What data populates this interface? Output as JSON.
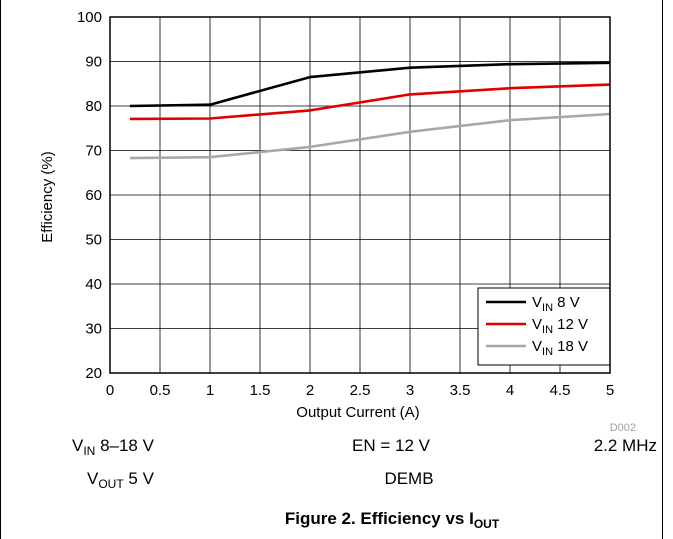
{
  "chart_data": {
    "type": "line",
    "xlabel": "Output Current (A)",
    "ylabel": "Efficiency (%)",
    "xlim": [
      0,
      5
    ],
    "ylim": [
      20,
      100
    ],
    "x_ticks": [
      "0",
      "0.5",
      "1",
      "1.5",
      "2",
      "2.5",
      "3",
      "3.5",
      "4",
      "4.5",
      "5"
    ],
    "y_ticks": [
      "20",
      "30",
      "40",
      "50",
      "60",
      "70",
      "80",
      "90",
      "100"
    ],
    "grid": true,
    "legend_placement": "bottom-right",
    "series": [
      {
        "name_main": "V",
        "name_sub": "IN",
        "name_rest": " 8 V",
        "color": "#000000",
        "x": [
          0.2,
          1.0,
          2.0,
          3.0,
          4.0,
          5.0
        ],
        "y": [
          80.0,
          80.3,
          86.5,
          88.6,
          89.4,
          89.7
        ]
      },
      {
        "name_main": "V",
        "name_sub": "IN",
        "name_rest": " 12 V",
        "color": "#e00000",
        "x": [
          0.2,
          1.0,
          2.0,
          3.0,
          4.0,
          5.0
        ],
        "y": [
          77.1,
          77.2,
          79.0,
          82.6,
          84.0,
          84.8
        ]
      },
      {
        "name_main": "V",
        "name_sub": "IN",
        "name_rest": " 18 V",
        "color": "#a8a8a8",
        "x": [
          0.2,
          1.0,
          2.0,
          3.0,
          4.0,
          5.0
        ],
        "y": [
          68.3,
          68.5,
          70.8,
          74.2,
          76.8,
          78.2
        ]
      }
    ],
    "source_id": "D002"
  },
  "conditions": {
    "vin": {
      "main": "V",
      "sub": "IN",
      "rest": " 8–18 V"
    },
    "vout": {
      "main": "V",
      "sub": "OUT",
      "rest": " 5 V"
    },
    "en": "EN = 12 V",
    "mode": "DEMB",
    "freq": "2.2 MHz"
  },
  "caption": {
    "main": "Figure 2. Efficiency vs I",
    "sub": "OUT"
  }
}
